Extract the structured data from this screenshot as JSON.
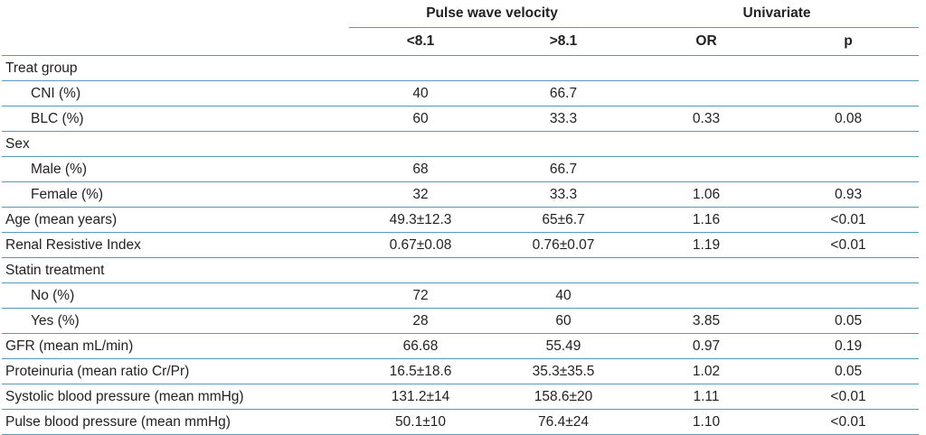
{
  "header": {
    "group_pwv": "Pulse wave velocity",
    "group_uni": "Univariate",
    "col_lt": "<8.1",
    "col_gt": ">8.1",
    "col_or": "OR",
    "col_p": "p"
  },
  "rows": [
    {
      "label": "Treat group",
      "lt": "",
      "gt": "",
      "or": "",
      "p": "",
      "sub": false
    },
    {
      "label": "CNI (%)",
      "lt": "40",
      "gt": "66.7",
      "or": "",
      "p": "",
      "sub": true
    },
    {
      "label": "BLC (%)",
      "lt": "60",
      "gt": "33.3",
      "or": "0.33",
      "p": "0.08",
      "sub": true
    },
    {
      "label": "Sex",
      "lt": "",
      "gt": "",
      "or": "",
      "p": "",
      "sub": false
    },
    {
      "label": "Male (%)",
      "lt": "68",
      "gt": "66.7",
      "or": "",
      "p": "",
      "sub": true
    },
    {
      "label": "Female (%)",
      "lt": "32",
      "gt": "33.3",
      "or": "1.06",
      "p": "0.93",
      "sub": true
    },
    {
      "label": "Age (mean years)",
      "lt": "49.3±12.3",
      "gt": "65±6.7",
      "or": "1.16",
      "p": "<0.01",
      "sub": false
    },
    {
      "label": "Renal Resistive Index",
      "lt": "0.67±0.08",
      "gt": "0.76±0.07",
      "or": "1.19",
      "p": "<0.01",
      "sub": false
    },
    {
      "label": "Statin treatment",
      "lt": "",
      "gt": "",
      "or": "",
      "p": "",
      "sub": false
    },
    {
      "label": "No (%)",
      "lt": "72",
      "gt": "40",
      "or": "",
      "p": "",
      "sub": true
    },
    {
      "label": "Yes (%)",
      "lt": "28",
      "gt": "60",
      "or": "3.85",
      "p": "0.05",
      "sub": true
    },
    {
      "label": "GFR (mean mL/min)",
      "lt": "66.68",
      "gt": "55.49",
      "or": "0.97",
      "p": "0.19",
      "sub": false
    },
    {
      "label": "Proteinuria (mean ratio Cr/Pr)",
      "lt": "16.5±18.6",
      "gt": "35.3±35.5",
      "or": "1.02",
      "p": "0.05",
      "sub": false
    },
    {
      "label": "Systolic blood pressure (mean mmHg)",
      "lt": "131.2±14",
      "gt": "158.6±20",
      "or": "1.11",
      "p": "<0.01",
      "sub": false
    },
    {
      "label": "Pulse blood pressure (mean mmHg)",
      "lt": "50.1±10",
      "gt": "76.4±24",
      "or": "1.10",
      "p": "<0.01",
      "sub": false
    }
  ]
}
